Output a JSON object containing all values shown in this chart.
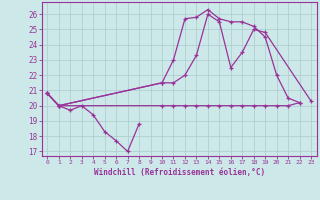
{
  "bg_color": "#cce8e8",
  "grid_color": "#aacccc",
  "line_color": "#993399",
  "xlabel": "Windchill (Refroidissement éolien,°C)",
  "xlim": [
    -0.5,
    23.5
  ],
  "ylim": [
    16.7,
    26.8
  ],
  "yticks": [
    17,
    18,
    19,
    20,
    21,
    22,
    23,
    24,
    25,
    26
  ],
  "xticks": [
    0,
    1,
    2,
    3,
    4,
    5,
    6,
    7,
    8,
    9,
    10,
    11,
    12,
    13,
    14,
    15,
    16,
    17,
    18,
    19,
    20,
    21,
    22,
    23
  ],
  "series": [
    {
      "x": [
        0,
        1,
        2,
        3,
        4,
        5,
        6,
        7,
        8
      ],
      "y": [
        20.8,
        20.0,
        19.7,
        20.0,
        19.4,
        18.3,
        17.7,
        17.0,
        18.8
      ]
    },
    {
      "x": [
        0,
        1,
        10,
        11,
        12,
        13,
        14,
        15,
        16,
        17,
        18,
        19,
        20,
        21,
        22
      ],
      "y": [
        20.8,
        20.0,
        20.0,
        20.0,
        20.0,
        20.0,
        20.0,
        20.0,
        20.0,
        20.0,
        20.0,
        20.0,
        20.0,
        20.0,
        20.2
      ]
    },
    {
      "x": [
        0,
        1,
        10,
        11,
        12,
        13,
        14,
        15,
        16,
        17,
        18,
        19,
        20,
        21,
        22
      ],
      "y": [
        20.8,
        20.0,
        21.5,
        23.0,
        25.7,
        25.8,
        26.3,
        25.7,
        25.5,
        25.5,
        25.2,
        24.5,
        22.0,
        20.5,
        20.2
      ]
    },
    {
      "x": [
        0,
        1,
        10,
        11,
        12,
        13,
        14,
        15,
        16,
        17,
        18,
        19,
        23
      ],
      "y": [
        20.8,
        20.0,
        21.5,
        21.5,
        22.0,
        23.3,
        26.0,
        25.5,
        22.5,
        23.5,
        25.0,
        24.8,
        20.3
      ]
    }
  ]
}
